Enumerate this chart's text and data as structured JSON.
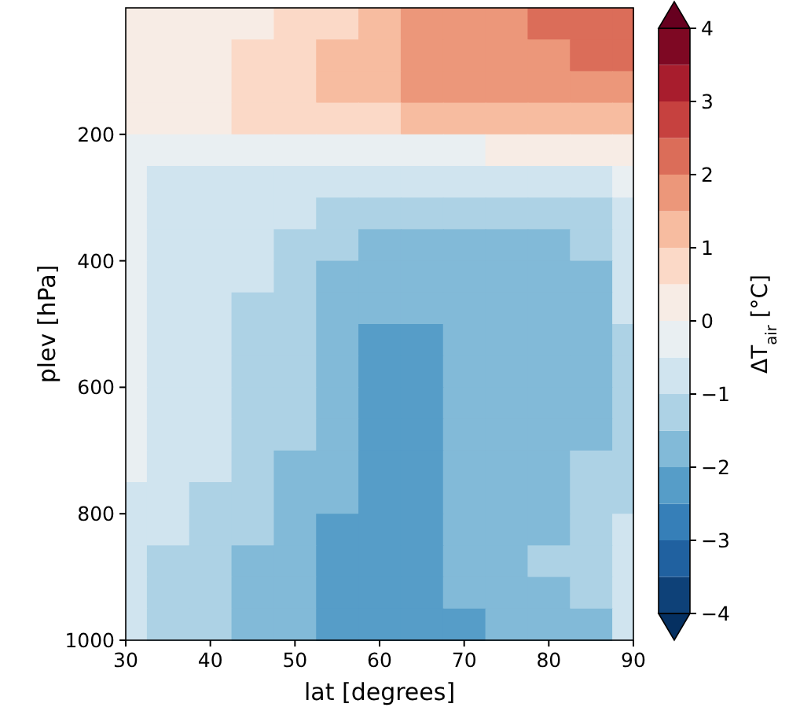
{
  "chart_data": {
    "type": "heatmap",
    "xlabel": "lat [degrees]",
    "ylabel": "plev [hPa]",
    "clabel": "ΔT$_{air}$ [°C]",
    "x": [
      30,
      35,
      40,
      45,
      50,
      55,
      60,
      65,
      70,
      75,
      80,
      85,
      90
    ],
    "y": [
      25,
      75,
      125,
      175,
      225,
      275,
      325,
      375,
      425,
      475,
      525,
      575,
      625,
      675,
      725,
      775,
      825,
      875,
      925,
      975
    ],
    "xlim": [
      30,
      90
    ],
    "ylim": [
      1000,
      0
    ],
    "xticks": [
      30,
      40,
      50,
      60,
      70,
      80,
      90
    ],
    "yticks": [
      200,
      400,
      600,
      800,
      1000
    ],
    "clim": [
      -4,
      4
    ],
    "cticks": [
      -4,
      -3,
      -2,
      -1,
      0,
      1,
      2,
      3,
      4
    ],
    "cells": [
      [
        0.25,
        0.25,
        0.25,
        0.25,
        0.75,
        0.75,
        1.25,
        1.75,
        1.75,
        1.75,
        2.25,
        2.25,
        2.25
      ],
      [
        0.25,
        0.25,
        0.25,
        0.75,
        0.75,
        1.25,
        1.25,
        1.75,
        1.75,
        1.75,
        1.75,
        2.25,
        2.25
      ],
      [
        0.25,
        0.25,
        0.25,
        0.75,
        0.75,
        1.25,
        1.25,
        1.75,
        1.75,
        1.75,
        1.75,
        1.75,
        1.75
      ],
      [
        0.25,
        0.25,
        0.25,
        0.75,
        0.75,
        0.75,
        0.75,
        1.25,
        1.25,
        1.25,
        1.25,
        1.25,
        1.25
      ],
      [
        -0.25,
        -0.25,
        -0.25,
        -0.25,
        -0.25,
        -0.25,
        -0.25,
        -0.25,
        -0.25,
        0.25,
        0.25,
        0.25,
        0.25
      ],
      [
        -0.25,
        -0.75,
        -0.75,
        -0.75,
        -0.75,
        -0.75,
        -0.75,
        -0.75,
        -0.75,
        -0.75,
        -0.75,
        -0.75,
        -0.25
      ],
      [
        -0.25,
        -0.75,
        -0.75,
        -0.75,
        -0.75,
        -1.25,
        -1.25,
        -1.25,
        -1.25,
        -1.25,
        -1.25,
        -1.25,
        -0.75
      ],
      [
        -0.25,
        -0.75,
        -0.75,
        -0.75,
        -1.25,
        -1.25,
        -1.75,
        -1.75,
        -1.75,
        -1.75,
        -1.75,
        -1.25,
        -0.75
      ],
      [
        -0.25,
        -0.75,
        -0.75,
        -0.75,
        -1.25,
        -1.75,
        -1.75,
        -1.75,
        -1.75,
        -1.75,
        -1.75,
        -1.75,
        -0.75
      ],
      [
        -0.25,
        -0.75,
        -0.75,
        -1.25,
        -1.25,
        -1.75,
        -1.75,
        -1.75,
        -1.75,
        -1.75,
        -1.75,
        -1.75,
        -0.75
      ],
      [
        -0.25,
        -0.75,
        -0.75,
        -1.25,
        -1.25,
        -1.75,
        -2.25,
        -2.25,
        -1.75,
        -1.75,
        -1.75,
        -1.75,
        -1.25
      ],
      [
        -0.25,
        -0.75,
        -0.75,
        -1.25,
        -1.25,
        -1.75,
        -2.25,
        -2.25,
        -1.75,
        -1.75,
        -1.75,
        -1.75,
        -1.25
      ],
      [
        -0.25,
        -0.75,
        -0.75,
        -1.25,
        -1.25,
        -1.75,
        -2.25,
        -2.25,
        -1.75,
        -1.75,
        -1.75,
        -1.75,
        -1.25
      ],
      [
        -0.25,
        -0.75,
        -0.75,
        -1.25,
        -1.25,
        -1.75,
        -2.25,
        -2.25,
        -1.75,
        -1.75,
        -1.75,
        -1.75,
        -1.25
      ],
      [
        -0.25,
        -0.75,
        -0.75,
        -1.25,
        -1.75,
        -1.75,
        -2.25,
        -2.25,
        -1.75,
        -1.75,
        -1.75,
        -1.25,
        -1.25
      ],
      [
        -0.75,
        -0.75,
        -1.25,
        -1.25,
        -1.75,
        -1.75,
        -2.25,
        -2.25,
        -1.75,
        -1.75,
        -1.75,
        -1.25,
        -1.25
      ],
      [
        -0.75,
        -0.75,
        -1.25,
        -1.25,
        -1.75,
        -2.25,
        -2.25,
        -2.25,
        -1.75,
        -1.75,
        -1.75,
        -1.25,
        -0.75
      ],
      [
        -0.75,
        -1.25,
        -1.25,
        -1.75,
        -1.75,
        -2.25,
        -2.25,
        -2.25,
        -1.75,
        -1.75,
        -1.25,
        -1.25,
        -0.75
      ],
      [
        -0.75,
        -1.25,
        -1.25,
        -1.75,
        -1.75,
        -2.25,
        -2.25,
        -2.25,
        -1.75,
        -1.75,
        -1.75,
        -1.25,
        -0.75
      ],
      [
        -0.75,
        -1.25,
        -1.25,
        -1.75,
        -1.75,
        -2.25,
        -2.25,
        -2.25,
        -2.25,
        -1.75,
        -1.75,
        -1.75,
        -0.75
      ]
    ]
  }
}
